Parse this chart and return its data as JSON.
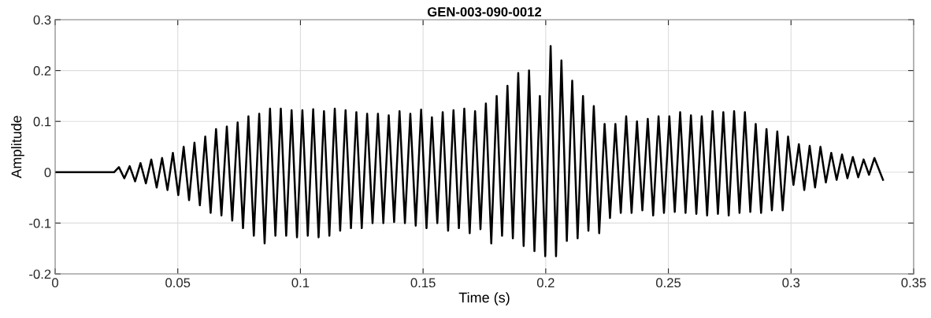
{
  "chart_data": {
    "type": "line",
    "title": "GEN-003-090-0012",
    "xlabel": "Time (s)",
    "ylabel": "Amplitude",
    "x": [
      0,
      0.012,
      0.024,
      0.026,
      0.0282,
      0.0304,
      0.0326,
      0.0348,
      0.037,
      0.0392,
      0.0414,
      0.0436,
      0.0458,
      0.048,
      0.0502,
      0.0524,
      0.0546,
      0.0568,
      0.059,
      0.0612,
      0.0634,
      0.0656,
      0.0678,
      0.07,
      0.0722,
      0.0744,
      0.0766,
      0.0788,
      0.081,
      0.0832,
      0.0854,
      0.0876,
      0.0898,
      0.092,
      0.0942,
      0.0964,
      0.0986,
      0.1008,
      0.103,
      0.1052,
      0.1074,
      0.1096,
      0.1118,
      0.114,
      0.1162,
      0.1184,
      0.1206,
      0.1228,
      0.125,
      0.1272,
      0.1294,
      0.1316,
      0.1338,
      0.136,
      0.1382,
      0.1404,
      0.1426,
      0.1448,
      0.147,
      0.1492,
      0.1514,
      0.1536,
      0.1558,
      0.158,
      0.1602,
      0.1624,
      0.1646,
      0.1668,
      0.169,
      0.1712,
      0.1734,
      0.1756,
      0.1778,
      0.18,
      0.1822,
      0.1844,
      0.1866,
      0.1888,
      0.191,
      0.1932,
      0.1954,
      0.1976,
      0.1998,
      0.202,
      0.2042,
      0.2064,
      0.2086,
      0.2108,
      0.213,
      0.2152,
      0.2174,
      0.2196,
      0.2218,
      0.224,
      0.2262,
      0.2284,
      0.2306,
      0.2328,
      0.235,
      0.2372,
      0.2394,
      0.2416,
      0.2438,
      0.246,
      0.2482,
      0.2504,
      0.2526,
      0.2548,
      0.257,
      0.2592,
      0.2614,
      0.2636,
      0.2658,
      0.268,
      0.2702,
      0.2724,
      0.2746,
      0.2768,
      0.279,
      0.2812,
      0.2834,
      0.2856,
      0.2878,
      0.29,
      0.2922,
      0.2944,
      0.2966,
      0.2988,
      0.301,
      0.3032,
      0.3054,
      0.3076,
      0.3098,
      0.312,
      0.3142,
      0.3164,
      0.3186,
      0.3208,
      0.323,
      0.3252,
      0.3274,
      0.3296,
      0.3318,
      0.334,
      0.3375
    ],
    "series": [
      {
        "color": "#000000",
        "values": [
          0,
          0,
          0,
          0.01,
          -0.012,
          0.012,
          -0.018,
          0.018,
          -0.022,
          0.025,
          -0.03,
          0.028,
          -0.035,
          0.038,
          -0.045,
          0.05,
          -0.055,
          0.058,
          -0.065,
          0.07,
          -0.08,
          0.085,
          -0.085,
          0.09,
          -0.095,
          0.098,
          -0.11,
          0.11,
          -0.125,
          0.115,
          -0.14,
          0.125,
          -0.125,
          0.125,
          -0.125,
          0.122,
          -0.128,
          0.122,
          -0.125,
          0.124,
          -0.128,
          0.12,
          -0.125,
          0.125,
          -0.115,
          0.122,
          -0.11,
          0.118,
          -0.11,
          0.115,
          -0.1,
          0.115,
          -0.1,
          0.112,
          -0.098,
          0.12,
          -0.1,
          0.115,
          -0.105,
          0.123,
          -0.11,
          0.108,
          -0.1,
          0.118,
          -0.115,
          0.122,
          -0.11,
          0.125,
          -0.12,
          0.12,
          -0.112,
          0.135,
          -0.14,
          0.15,
          -0.125,
          0.17,
          -0.13,
          0.195,
          -0.145,
          0.2,
          -0.155,
          0.15,
          -0.165,
          0.248,
          -0.165,
          0.22,
          -0.135,
          0.18,
          -0.13,
          0.15,
          -0.115,
          0.13,
          -0.12,
          0.095,
          -0.09,
          0.095,
          -0.08,
          0.11,
          -0.08,
          0.1,
          -0.075,
          0.105,
          -0.085,
          0.11,
          -0.08,
          0.11,
          -0.078,
          0.118,
          -0.08,
          0.112,
          -0.082,
          0.11,
          -0.085,
          0.12,
          -0.082,
          0.118,
          -0.085,
          0.12,
          -0.08,
          0.118,
          -0.078,
          0.095,
          -0.08,
          0.085,
          -0.075,
          0.08,
          -0.075,
          0.07,
          -0.025,
          0.055,
          -0.035,
          0.052,
          -0.03,
          0.05,
          -0.02,
          0.038,
          -0.015,
          0.035,
          -0.012,
          0.03,
          -0.01,
          0.025,
          -0.005,
          0.028,
          -0.015
        ]
      }
    ],
    "xlim": [
      0,
      0.35
    ],
    "xticks": [
      0,
      0.05,
      0.1,
      0.15,
      0.2,
      0.25,
      0.3,
      0.35
    ],
    "ylim": [
      -0.2,
      0.3
    ],
    "yticks": [
      -0.2,
      -0.1,
      0,
      0.1,
      0.2,
      0.3
    ],
    "grid": true,
    "line_style": "solid"
  }
}
